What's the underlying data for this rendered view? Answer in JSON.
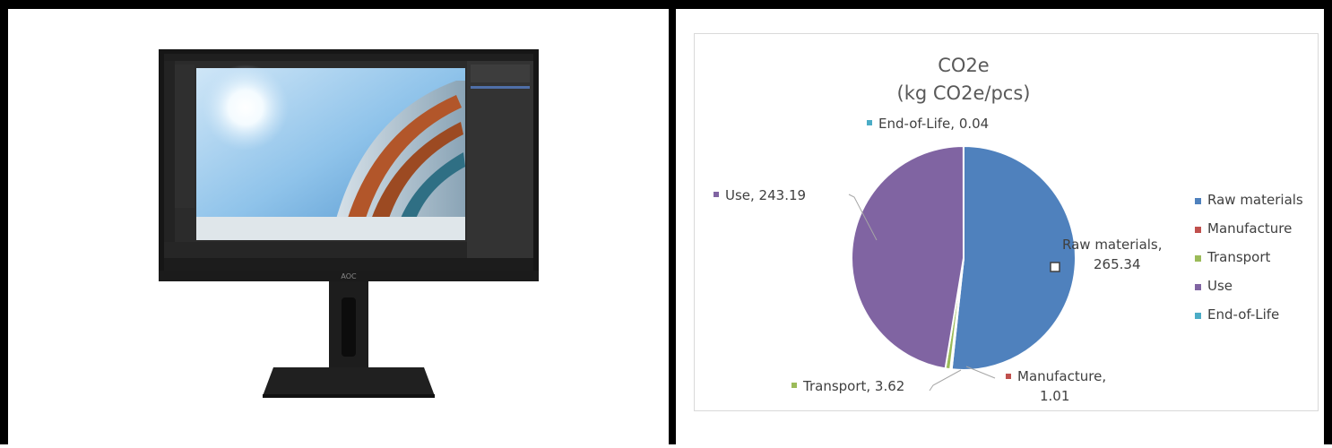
{
  "chart_data": {
    "type": "pie",
    "title": "CO2e",
    "subtitle": "(kg CO2e/pcs)",
    "legend_position": "right",
    "categories": [
      "Raw materials",
      "Manufacture",
      "Transport",
      "Use",
      "End-of-Life"
    ],
    "values": [
      265.34,
      1.01,
      3.62,
      243.19,
      0.04
    ],
    "value_labels": [
      "265.34",
      "1.01",
      "3.62",
      "243.19",
      "0.04"
    ],
    "colors": [
      "#4f81bd",
      "#c0504d",
      "#9bbb59",
      "#8064a2",
      "#4bacc6"
    ]
  },
  "product": {
    "brand_logo": "AOC",
    "icon": "monitor-icon"
  }
}
